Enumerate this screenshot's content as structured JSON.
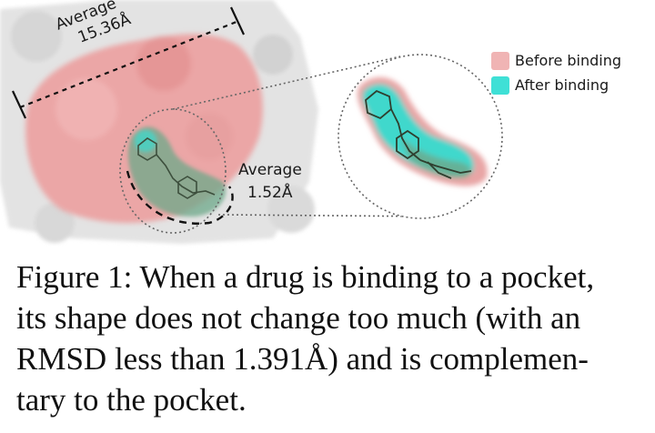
{
  "figure": {
    "width_label_line1": "Average",
    "width_label_line2": "15.36Å",
    "rmsd_label_line1": "Average",
    "rmsd_label_line2": "1.52Å",
    "legend": [
      {
        "label": "Before binding",
        "color": "#f0b4b4"
      },
      {
        "label": "After binding",
        "color": "#3fe0d6"
      }
    ],
    "colors": {
      "protein_surface": "#e2e2e2",
      "pocket_before": "#e89a9a",
      "pocket_after": "#35d8cc",
      "ligand": "#556b55"
    }
  },
  "caption": {
    "lines": [
      "Figure 1: When a drug is binding to a pocket,",
      "its shape does not change too much (with an",
      "RMSD less than 1.391Å) and is complemen-",
      "tary to the pocket."
    ]
  }
}
